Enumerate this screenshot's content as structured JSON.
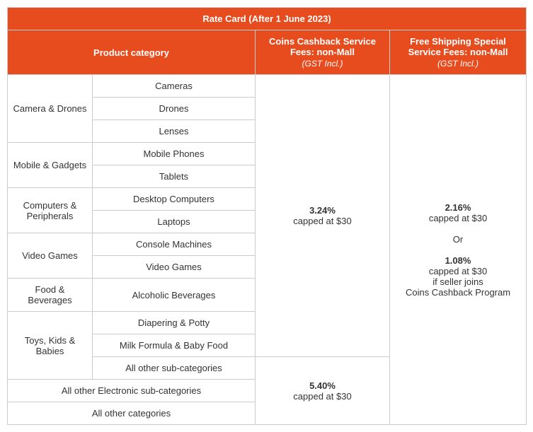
{
  "title": "Rate Card (After 1 June 2023)",
  "headers": {
    "category": "Product category",
    "cashback": "Coins Cashback Service Fees: non-Mall",
    "shipping": "Free Shipping Special Service Fees: non-Mall",
    "gst": "(GST Incl.)"
  },
  "groups": {
    "camera": "Camera & Drones",
    "mobile": "Mobile & Gadgets",
    "computers": "Computers & Peripherals",
    "video": "Video Games",
    "food": "Food & Beverages",
    "toys": "Toys, Kids & Babies"
  },
  "sub": {
    "cameras": "Cameras",
    "drones": "Drones",
    "lenses": "Lenses",
    "mobilephones": "Mobile Phones",
    "tablets": "Tablets",
    "desktop": "Desktop Computers",
    "laptops": "Laptops",
    "console": "Console Machines",
    "videogames": "Video Games",
    "alcohol": "Alcoholic Beverages",
    "diapering": "Diapering & Potty",
    "milk": "Milk Formula & Baby Food",
    "allothersub": "All other sub-categories",
    "allelec": "All other Electronic sub-categories",
    "allcat": "All other categories"
  },
  "rates": {
    "r1_pct": "3.24%",
    "r1_cap": "capped at $30",
    "r2_pct": "5.40%",
    "r2_cap": "capped at $30",
    "ship_pct1": "2.16%",
    "ship_cap1": "capped at $30",
    "ship_or": "Or",
    "ship_pct2": "1.08%",
    "ship_cap2": "capped at $30",
    "ship_cond1": "if seller joins",
    "ship_cond2": "Coins Cashback Program"
  },
  "style": {
    "header_bg": "#e74c1f",
    "header_text": "#ffffff",
    "border_color": "#cccccc",
    "body_text": "#333333",
    "font_size_body": 13,
    "font_size_sub": 12
  }
}
